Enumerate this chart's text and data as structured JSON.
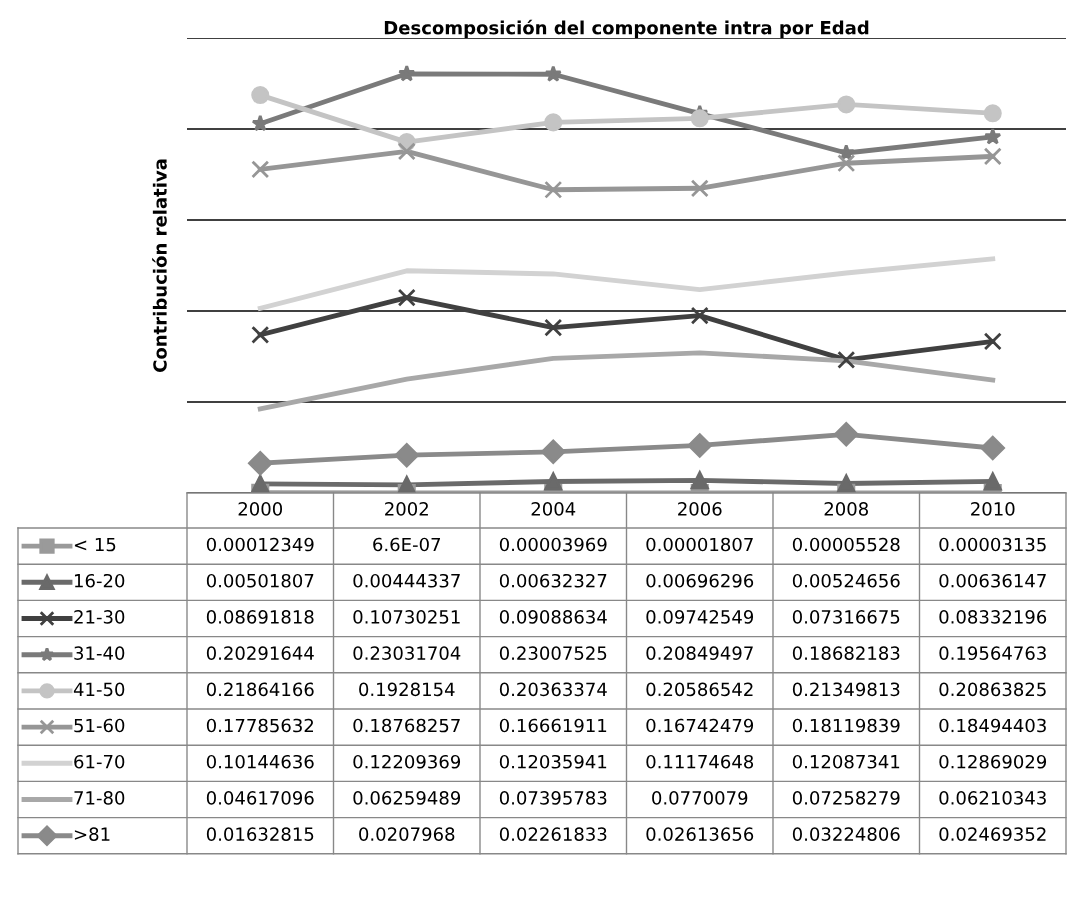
{
  "chart_data": {
    "type": "line",
    "title": "Descomposición del componente intra por Edad",
    "ylabel": "Contribución relativa",
    "categories": [
      "2000",
      "2002",
      "2004",
      "2006",
      "2008",
      "2010"
    ],
    "ylim": [
      0,
      0.25
    ],
    "yticks": [
      {
        "value": 0,
        "label": null
      },
      {
        "value": 0.05,
        "label": null
      },
      {
        "value": 0.1,
        "label": null
      },
      {
        "value": 0.15,
        "label": null
      },
      {
        "value": 0.2,
        "label": null
      },
      {
        "value": 0.25,
        "label": null
      }
    ],
    "grid": "y",
    "tick_labels": "x",
    "legend": "left",
    "line_style": "solid",
    "series": [
      {
        "name": "< 15",
        "color": "#9a9a9a",
        "marker": "square",
        "values": [
          0.00012349,
          6.6e-07,
          3.969e-05,
          1.807e-05,
          5.528e-05,
          3.135e-05
        ],
        "value_labels": [
          "0.00012349",
          "6.6E-07",
          "0.00003969",
          "0.00001807",
          "0.00005528",
          "0.00003135"
        ]
      },
      {
        "name": "16-20",
        "color": "#6a6a6a",
        "marker": "triangle",
        "values": [
          0.00501807,
          0.00444337,
          0.00632327,
          0.00696296,
          0.00524656,
          0.00636147
        ],
        "value_labels": [
          "0.00501807",
          "0.00444337",
          "0.00632327",
          "0.00696296",
          "0.00524656",
          "0.00636147"
        ]
      },
      {
        "name": "21-30",
        "color": "#404040",
        "marker": "cross",
        "values": [
          0.08691818,
          0.10730251,
          0.09088634,
          0.09742549,
          0.07316675,
          0.08332196
        ],
        "value_labels": [
          "0.08691818",
          "0.10730251",
          "0.09088634",
          "0.09742549",
          "0.07316675",
          "0.08332196"
        ]
      },
      {
        "name": "31-40",
        "color": "#7a7a7a",
        "marker": "star",
        "values": [
          0.20291644,
          0.23031704,
          0.23007525,
          0.20849497,
          0.18682183,
          0.19564763
        ],
        "value_labels": [
          "0.20291644",
          "0.23031704",
          "0.23007525",
          "0.20849497",
          "0.18682183",
          "0.19564763"
        ]
      },
      {
        "name": "41-50",
        "color": "#c4c4c4",
        "marker": "circle",
        "values": [
          0.21864166,
          0.1928154,
          0.20363374,
          0.20586542,
          0.21349813,
          0.20863825
        ],
        "value_labels": [
          "0.21864166",
          "0.1928154",
          "0.20363374",
          "0.20586542",
          "0.21349813",
          "0.20863825"
        ]
      },
      {
        "name": "51-60",
        "color": "#969696",
        "marker": "cross",
        "values": [
          0.17785632,
          0.18768257,
          0.16661911,
          0.16742479,
          0.18119839,
          0.18494403
        ],
        "value_labels": [
          "0.17785632",
          "0.18768257",
          "0.16661911",
          "0.16742479",
          "0.18119839",
          "0.18494403"
        ]
      },
      {
        "name": "61-70",
        "color": "#d2d2d2",
        "marker": "none",
        "values": [
          0.10144636,
          0.12209369,
          0.12035941,
          0.11174648,
          0.12087341,
          0.12869029
        ],
        "value_labels": [
          "0.10144636",
          "0.12209369",
          "0.12035941",
          "0.11174648",
          "0.12087341",
          "0.12869029"
        ]
      },
      {
        "name": "71-80",
        "color": "#a8a8a8",
        "marker": "none",
        "values": [
          0.04617096,
          0.06259489,
          0.07395783,
          0.0770079,
          0.07258279,
          0.06210343
        ],
        "value_labels": [
          "0.04617096",
          "0.06259489",
          "0.07395783",
          "0.0770079",
          "0.07258279",
          "0.06210343"
        ]
      },
      {
        "name": ">81",
        "color": "#8a8a8a",
        "marker": "diamond",
        "values": [
          0.01632815,
          0.0207968,
          0.02261833,
          0.02613656,
          0.03224806,
          0.02469352
        ],
        "value_labels": [
          "0.01632815",
          "0.0207968",
          "0.02261833",
          "0.02613656",
          "0.03224806",
          "0.02469352"
        ]
      }
    ]
  }
}
